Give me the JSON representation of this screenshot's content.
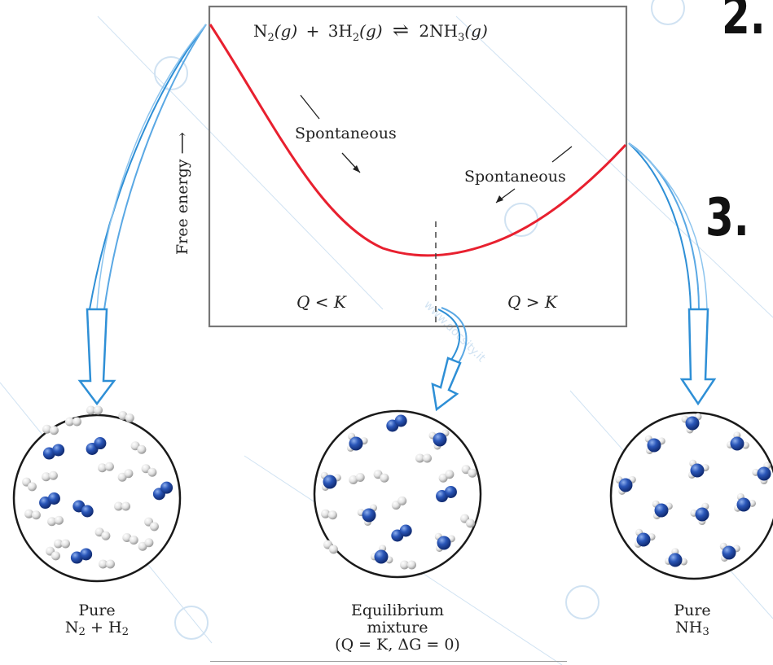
{
  "equation": {
    "reactant1": "N",
    "reactant1_sub": "2",
    "reactant1_phase": "(g)",
    "plus": "+",
    "reactant2_coef": "3H",
    "reactant2_sub": "2",
    "reactant2_phase": "(g)",
    "arrow": "⇌",
    "product": "2NH",
    "product_sub": "3",
    "product_phase": "(g)"
  },
  "axis": {
    "ylabel": "Free energy ⟶"
  },
  "annotations": {
    "spontaneous_left": "Spontaneous",
    "spontaneous_right": "Spontaneous",
    "region_left": "Q < K",
    "region_right": "Q > K"
  },
  "captions": {
    "left": {
      "line1": "Pure",
      "line2_a": "N",
      "line2_sub_a": "2",
      "line2_mid": " + H",
      "line2_sub_b": "2"
    },
    "middle": {
      "line1": "Equilibrium",
      "line2": "mixture",
      "line3": "(Q = K, ΔG = 0)"
    },
    "right": {
      "line1": "Pure",
      "line2_a": "NH",
      "line2_sub_a": "3"
    }
  },
  "side_numbers": {
    "top": "2.",
    "middle": "3."
  },
  "watermark": "www.docsity.it",
  "colors": {
    "curve": "#e8202f",
    "frame": "#777777",
    "arrow_blue": "#2e8fd6",
    "arrow_fill": "#ffffff",
    "nitrogen": "#2a56b8",
    "hydrogen": "#e8e8e8",
    "watermark": "#aacbe8"
  }
}
